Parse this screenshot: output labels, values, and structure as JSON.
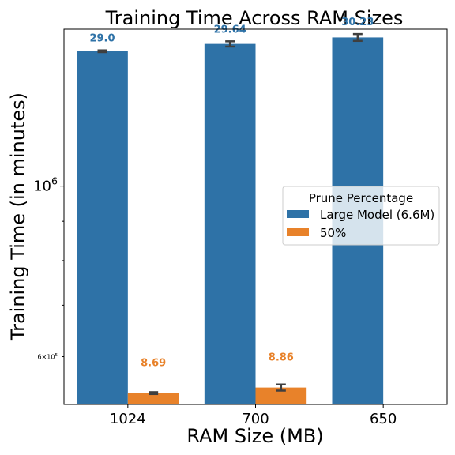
{
  "chart_data": {
    "type": "bar",
    "title": "Training Time Across RAM Sizes",
    "xlabel": "RAM Size (MB)",
    "ylabel": "Training Time (in minutes)",
    "yscale": "log",
    "ylim": [
      520000,
      1600000
    ],
    "y_tick_labels": [
      {
        "value": 1000000,
        "label": "10^6"
      },
      {
        "value": 600000,
        "label": "6×10^5"
      }
    ],
    "y_minor_ticks": [
      700000,
      800000,
      900000
    ],
    "categories": [
      "1024",
      "700",
      "650"
    ],
    "series": [
      {
        "name": "Large Model (6.6M)",
        "color": "#2e72a7",
        "values": [
          1498000,
          1531000,
          1561000
        ],
        "err": [
          4000,
          12000,
          16000
        ],
        "labels": [
          "29.0",
          "29.64",
          "30.23"
        ]
      },
      {
        "name": "50%",
        "color": "#e8822a",
        "values": [
          538000,
          547000,
          null
        ],
        "err": [
          1500,
          5000,
          null
        ],
        "labels": [
          "8.69",
          "8.86",
          null
        ]
      }
    ],
    "legend": {
      "title": "Prune Percentage",
      "position": "center-right"
    },
    "grid": false
  }
}
